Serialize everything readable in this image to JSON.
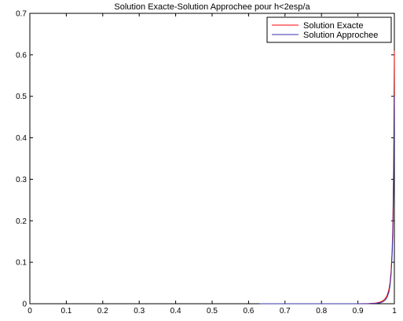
{
  "chart_data": {
    "type": "line",
    "title": "Solution Exacte-Solution Approchee pour h<2esp/a",
    "xlabel": "",
    "ylabel": "",
    "xlim": [
      0,
      1
    ],
    "ylim": [
      0,
      0.7
    ],
    "xticks": [
      0,
      0.1,
      0.2,
      0.3,
      0.4,
      0.5,
      0.6,
      0.7,
      0.8,
      0.9,
      1
    ],
    "yticks": [
      0,
      0.1,
      0.2,
      0.3,
      0.4,
      0.5,
      0.6,
      0.7
    ],
    "xtick_labels": [
      "0",
      "0.1",
      "0.2",
      "0.3",
      "0.4",
      "0.5",
      "0.6",
      "0.7",
      "0.8",
      "0.9",
      "1"
    ],
    "ytick_labels": [
      "0",
      "0.1",
      "0.2",
      "0.3",
      "0.4",
      "0.5",
      "0.6",
      "0.7"
    ],
    "grid": false,
    "legend": {
      "placement": "top-right"
    },
    "series": [
      {
        "name": "Solution Exacte",
        "color": "#ff0000",
        "x": [
          0.63,
          0.9,
          0.93,
          0.95,
          0.96,
          0.965,
          0.97,
          0.975,
          0.98,
          0.985,
          0.988,
          0.991,
          0.994,
          0.996,
          0.998,
          1.0
        ],
        "y": [
          0,
          0,
          0.0004,
          0.0017,
          0.0036,
          0.0054,
          0.0082,
          0.0125,
          0.0195,
          0.034,
          0.05,
          0.078,
          0.13,
          0.2,
          0.33,
          0.61
        ]
      },
      {
        "name": "Solution Approchee",
        "color": "#3333aa",
        "x": [
          0.63,
          0.9,
          0.93,
          0.95,
          0.96,
          0.965,
          0.97,
          0.975,
          0.98,
          0.985,
          0.988,
          0.991,
          0.994,
          0.996,
          0.998,
          1.0
        ],
        "y": [
          0,
          0,
          0.0002,
          0.001,
          0.0022,
          0.0035,
          0.0055,
          0.009,
          0.015,
          0.028,
          0.043,
          0.07,
          0.12,
          0.18,
          0.3,
          0.5
        ]
      }
    ]
  }
}
